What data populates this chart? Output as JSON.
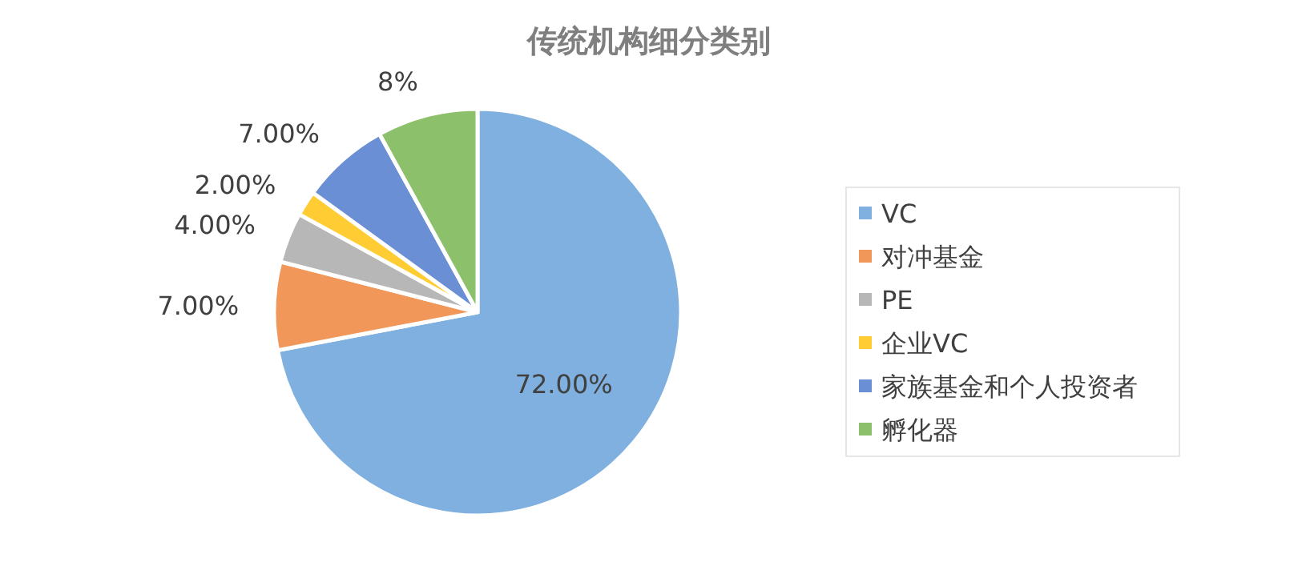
{
  "chart_data": {
    "type": "pie",
    "title": "传统机构细分类别",
    "categories": [
      "VC",
      "对冲基金",
      "PE",
      "企业VC",
      "家族基金和个人投资者",
      "孵化器"
    ],
    "values": [
      72,
      7,
      4,
      2,
      7,
      8
    ],
    "colors": [
      "#7fb0df",
      "#f1975a",
      "#b7b7b7",
      "#ffcd33",
      "#6a8fd4",
      "#8cc06b"
    ],
    "value_labels": [
      "72.00%",
      "7.00%",
      "4.00%",
      "2.00%",
      "7.00%",
      "8%"
    ],
    "legend": "right"
  }
}
